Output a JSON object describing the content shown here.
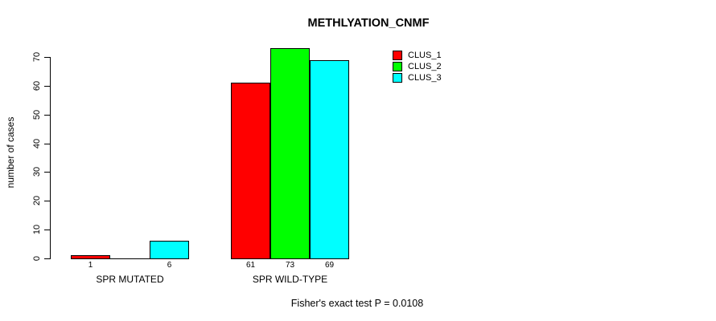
{
  "chart_data": {
    "type": "bar",
    "title": "METHLYATION_CNMF",
    "ylabel": "number of cases",
    "xlabel": "",
    "ylim": [
      0,
      70
    ],
    "yticks": [
      "0",
      "10",
      "20",
      "30",
      "40",
      "50",
      "60",
      "70"
    ],
    "grid": false,
    "categories": [
      "SPR MUTATED",
      "SPR WILD-TYPE"
    ],
    "series": [
      {
        "name": "CLUS_1",
        "color": "#ff0000",
        "values": [
          1,
          61
        ]
      },
      {
        "name": "CLUS_2",
        "color": "#00ff00",
        "values": [
          0,
          73
        ]
      },
      {
        "name": "CLUS_3",
        "color": "#00ffff",
        "values": [
          6,
          69
        ]
      }
    ],
    "bar_value_labels": [
      [
        "1",
        "",
        "6"
      ],
      [
        "61",
        "73",
        "69"
      ]
    ],
    "legend": {
      "position": "top-right",
      "entries": [
        "CLUS_1",
        "CLUS_2",
        "CLUS_3"
      ]
    },
    "annotation": "Fisher's exact test P = 0.0108"
  }
}
